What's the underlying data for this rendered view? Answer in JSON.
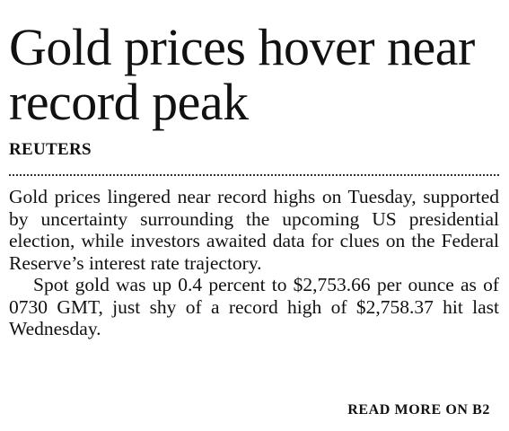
{
  "article": {
    "headline": "Gold prices hover near record peak",
    "byline": "REUTERS",
    "paragraphs": [
      "Gold prices lingered near record highs on Tuesday, supported by uncertainty surrounding the upcoming US presidential election, while investors awaited data for clues on the Federal Reserve’s interest rate trajectory.",
      "Spot gold was up 0.4 percent to $2,753.66 per ounce as of 0730 GMT, just shy of a record high of $2,758.37 hit last Wednesday."
    ],
    "jump_text": "READ MORE ON B2"
  }
}
